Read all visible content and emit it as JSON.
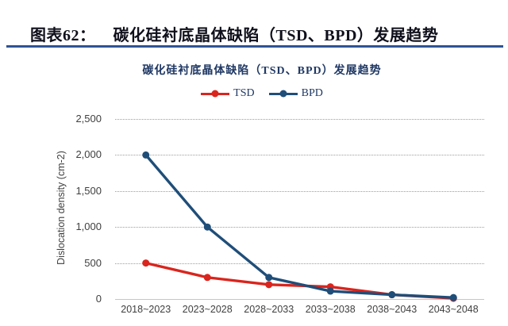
{
  "header": {
    "figure_label": "图表62：",
    "figure_title": "碳化硅衬底晶体缺陷（TSD、BPD）发展趋势"
  },
  "chart_data": {
    "type": "line",
    "title": "碳化硅衬底晶体缺陷（TSD、BPD）发展趋势",
    "categories": [
      "2018~2023",
      "2023~2028",
      "2028~2033",
      "2033~2038",
      "2038~2043",
      "2043~2048"
    ],
    "series": [
      {
        "name": "TSD",
        "color": "#d9251d",
        "values": [
          500,
          300,
          200,
          170,
          60,
          10
        ]
      },
      {
        "name": "BPD",
        "color": "#1f4e79",
        "values": [
          2000,
          1000,
          300,
          110,
          60,
          20
        ]
      }
    ],
    "xlabel": "",
    "ylabel": "Dislocation density (cm-2)",
    "ylim": [
      0,
      2500
    ],
    "ytick_step": 500,
    "ytick_labels": [
      "0",
      "500",
      "1,000",
      "1,500",
      "2,000",
      "2,500"
    ],
    "grid": true,
    "legend_position": "top"
  },
  "colors": {
    "header_underline": "#2e5395",
    "title_text": "#1f3864",
    "axis_text": "#3f3f3f",
    "gridline": "#9d9d9d",
    "tsd_red": "#d9251d",
    "bpd_navy": "#1f4e79"
  }
}
